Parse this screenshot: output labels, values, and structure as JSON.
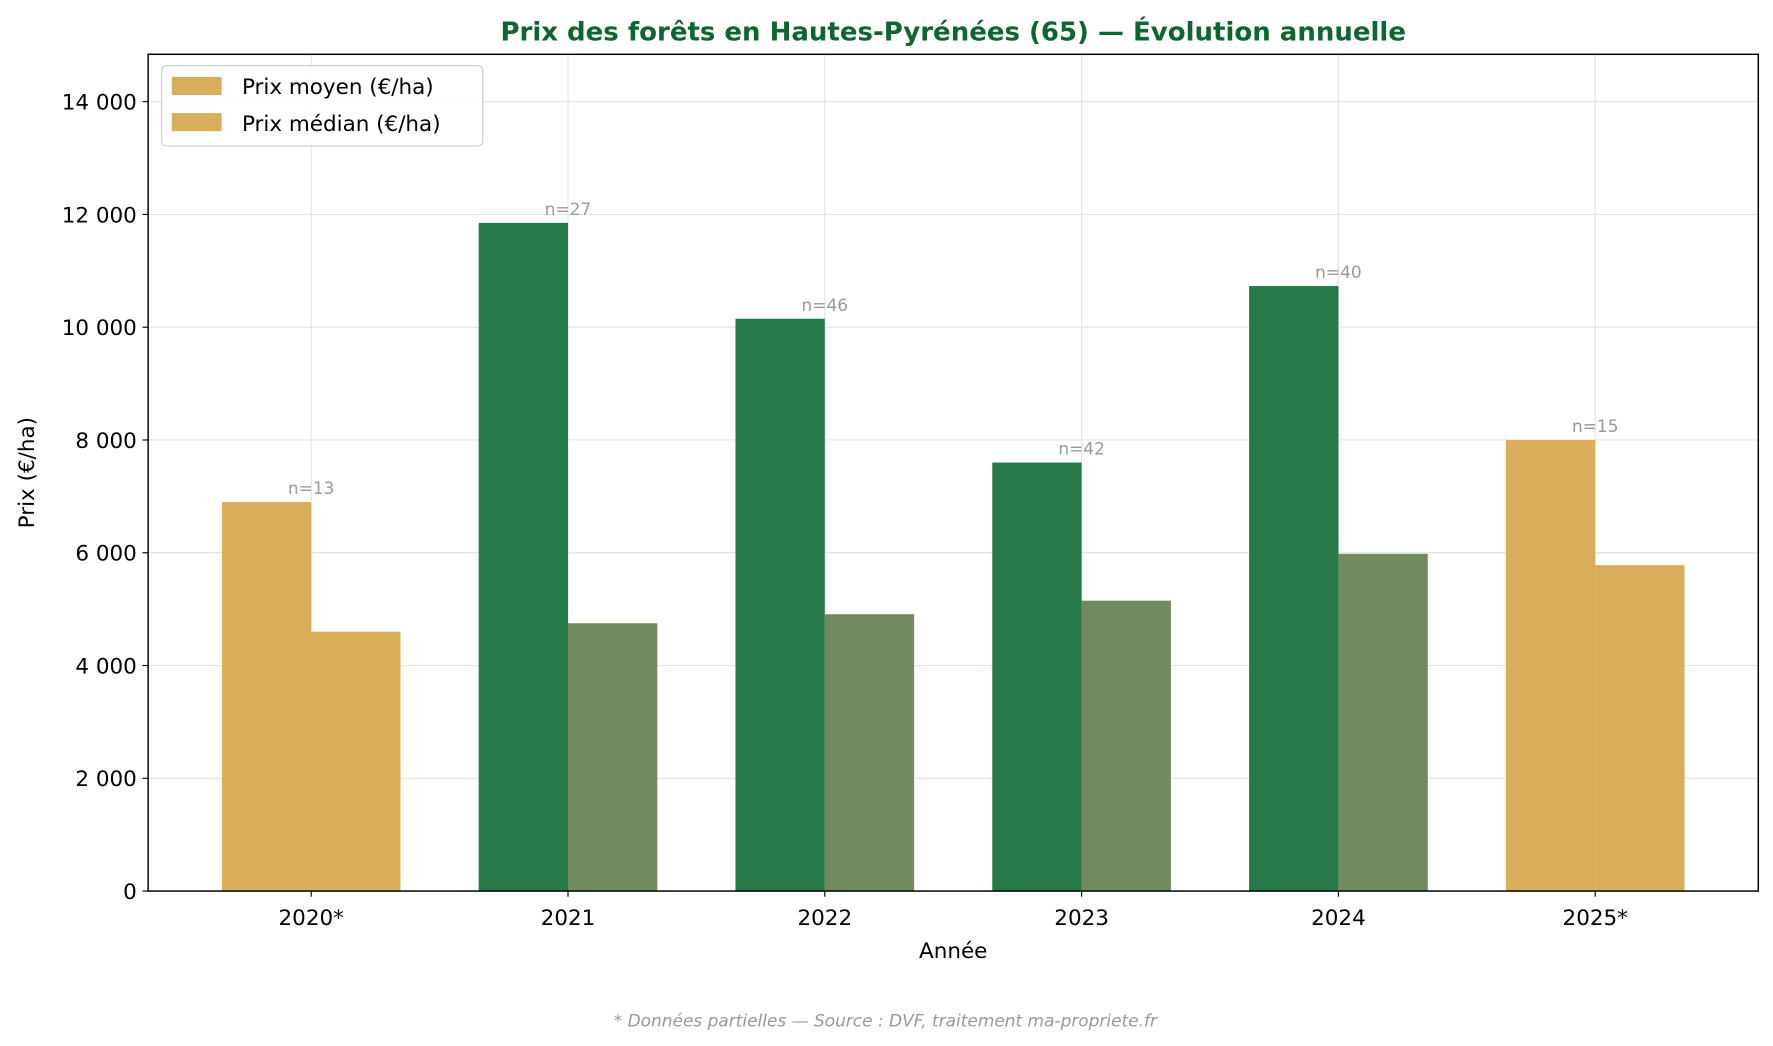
{
  "chart_data": {
    "type": "bar",
    "title": "Prix des forêts en Hautes-Pyrénées (65) — Évolution annuelle",
    "xlabel": "Année",
    "ylabel": "Prix (€/ha)",
    "ylim": [
      0,
      14840
    ],
    "yticks": [
      0,
      2000,
      4000,
      6000,
      8000,
      10000,
      12000,
      14000
    ],
    "ytick_labels": [
      "0",
      "2 000",
      "4 000",
      "6 000",
      "8 000",
      "10 000",
      "12 000",
      "14 000"
    ],
    "grid": true,
    "legend_position": "top-left",
    "categories": [
      "2020*",
      "2021",
      "2022",
      "2023",
      "2024",
      "2025*"
    ],
    "partial": [
      true,
      false,
      false,
      false,
      false,
      true
    ],
    "series": [
      {
        "name": "Prix moyen (€/ha)",
        "values": [
          6900,
          11850,
          10150,
          7600,
          10730,
          8000
        ]
      },
      {
        "name": "Prix médian (€/ha)",
        "values": [
          4600,
          4750,
          4910,
          5150,
          5980,
          5780
        ]
      }
    ],
    "annotations": [
      "n=13",
      "n=27",
      "n=46",
      "n=42",
      "n=40",
      "n=15"
    ],
    "footnote": "* Données partielles — Source : DVF, traitement ma-propriete.fr",
    "colors": {
      "mean": "#267a4a",
      "median": "#728a5f",
      "partial": "#d9ad5a",
      "title": "#0d6630",
      "annotation": "#999999"
    }
  }
}
